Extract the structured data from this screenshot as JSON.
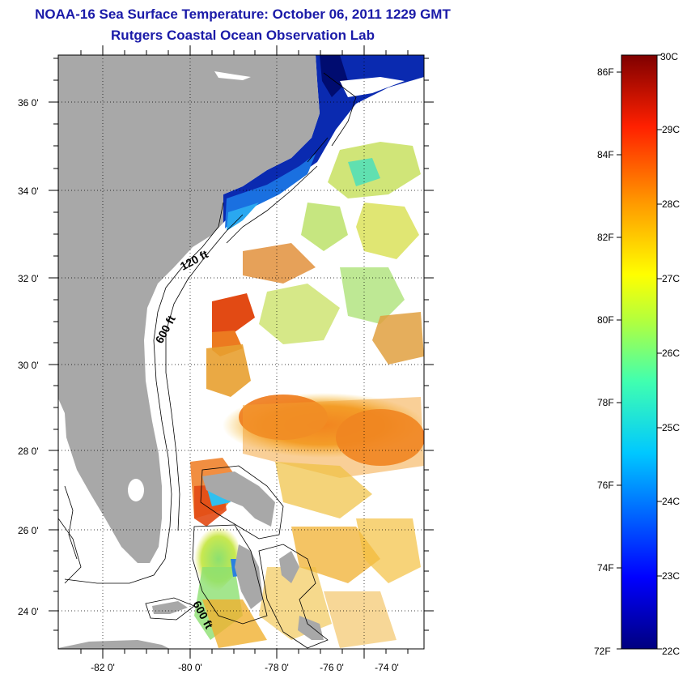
{
  "header": {
    "title": "NOAA-16 Sea Surface Temperature:  October 06, 2011 1229 GMT",
    "subtitle": "Rutgers Coastal Ocean Observation Lab"
  },
  "map": {
    "lon_ticks": [
      "-82 0'",
      "-80 0'",
      "-78 0'",
      "-76 0'",
      "-74 0'"
    ],
    "lat_ticks": [
      "36 0'",
      "34 0'",
      "32 0'",
      "30 0'",
      "28 0'",
      "26 0'",
      "24 0'"
    ],
    "contour_labels": [
      "120 ft",
      "600 ft",
      "600 ft"
    ]
  },
  "colorbar": {
    "fahrenheit_ticks": [
      "86F",
      "84F",
      "82F",
      "80F",
      "78F",
      "76F",
      "74F",
      "72F"
    ],
    "celsius_ticks": [
      "30C",
      "29C",
      "28C",
      "27C",
      "26C",
      "25C",
      "24C",
      "23C",
      "22C"
    ]
  },
  "colors": {
    "title": "#1a1aa8",
    "land": "#a8a8a8",
    "cold": "#0a1a9a",
    "warm": "#ee6a12"
  }
}
